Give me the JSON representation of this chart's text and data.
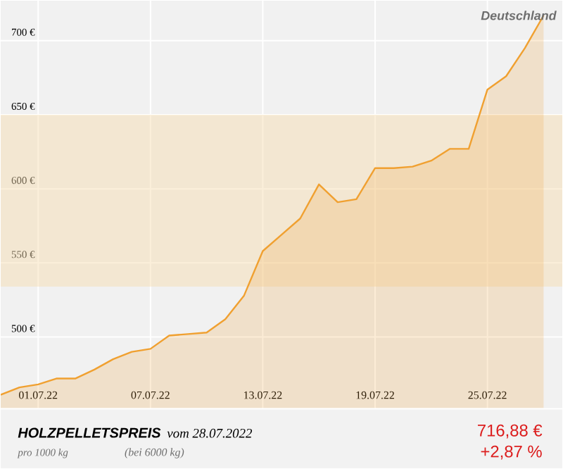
{
  "chart_data": {
    "type": "area",
    "title": "HOLZPELLETSPREIS",
    "subtitle": "vom 28.07.2022",
    "x": [
      "2022-06-29",
      "2022-06-30",
      "2022-07-01",
      "2022-07-02",
      "2022-07-03",
      "2022-07-04",
      "2022-07-05",
      "2022-07-06",
      "2022-07-07",
      "2022-07-08",
      "2022-07-09",
      "2022-07-10",
      "2022-07-11",
      "2022-07-12",
      "2022-07-13",
      "2022-07-14",
      "2022-07-15",
      "2022-07-16",
      "2022-07-17",
      "2022-07-18",
      "2022-07-19",
      "2022-07-20",
      "2022-07-21",
      "2022-07-22",
      "2022-07-23",
      "2022-07-24",
      "2022-07-25",
      "2022-07-26",
      "2022-07-27",
      "2022-07-28"
    ],
    "values": [
      461,
      466,
      468,
      472,
      472,
      478,
      485,
      490,
      492,
      501,
      502,
      503,
      512,
      528,
      558,
      569,
      580,
      603,
      591,
      593,
      614,
      614,
      615,
      619,
      627,
      627,
      667,
      676,
      695,
      717
    ],
    "color": "#f0a030",
    "xlim": [
      "2022-06-29",
      "2022-07-29"
    ],
    "ylim": [
      452,
      727
    ],
    "xticks": [
      {
        "value": "2022-07-01",
        "label": "01.07.22"
      },
      {
        "value": "2022-07-07",
        "label": "07.07.22"
      },
      {
        "value": "2022-07-13",
        "label": "13.07.22"
      },
      {
        "value": "2022-07-19",
        "label": "19.07.22"
      },
      {
        "value": "2022-07-25",
        "label": "25.07.22"
      }
    ],
    "yticks": [
      {
        "value": 500,
        "label": "500 €"
      },
      {
        "value": 550,
        "label": "550 €"
      },
      {
        "value": 600,
        "label": "600 €"
      },
      {
        "value": 650,
        "label": "650 €"
      },
      {
        "value": 700,
        "label": "700 €"
      }
    ],
    "grid": true,
    "bands": [
      {
        "axis": "y",
        "from": 534,
        "to": 650,
        "color": "#f6dcae"
      }
    ],
    "annotations": [
      "Deutschland",
      "pro 1000 kg",
      "(bei 6000 kg)",
      "716,88 €",
      "+2,87 %"
    ]
  }
}
